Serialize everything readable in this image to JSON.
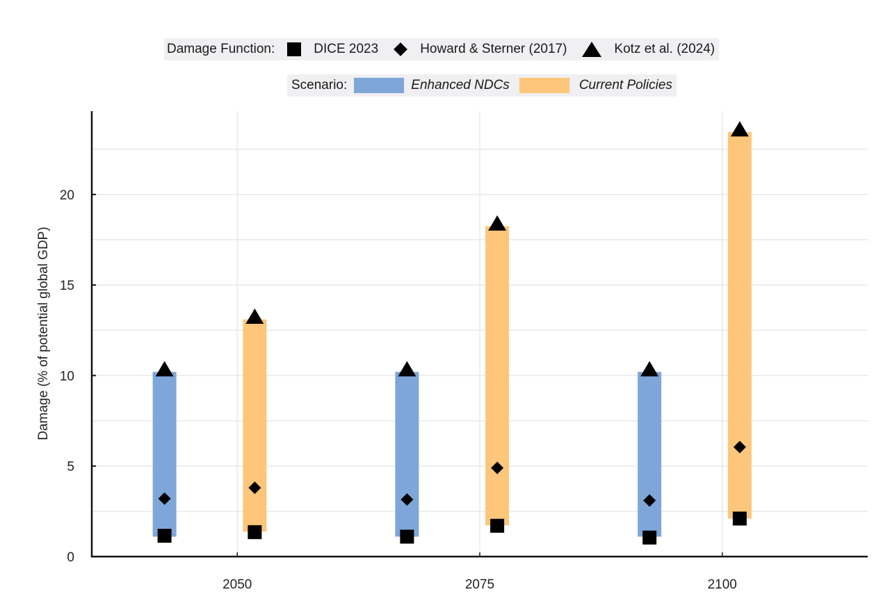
{
  "legends": {
    "damage_function": {
      "title": "Damage Function:",
      "items": [
        {
          "label": "DICE 2023",
          "marker": "square-icon"
        },
        {
          "label": "Howard & Sterner (2017)",
          "marker": "diamond-icon"
        },
        {
          "label": "Kotz et al. (2024)",
          "marker": "triangle-icon"
        }
      ]
    },
    "scenario": {
      "title": "Scenario:",
      "items": [
        {
          "label": "Enhanced NDCs",
          "color": "#7ea6d8"
        },
        {
          "label": "Current Policies",
          "color": "#fdc67a"
        }
      ]
    }
  },
  "chart_data": {
    "type": "range-bar-scatter",
    "title": "",
    "xlabel": "",
    "ylabel": "Damage (% of potential global GDP)",
    "xlim": [
      2035,
      2115
    ],
    "ylim": [
      0,
      24.6
    ],
    "x_ticks": [
      2050,
      2075,
      2100
    ],
    "x_tick_labels": [
      "2050",
      "2075",
      "2100"
    ],
    "y_ticks": [
      0,
      5,
      10,
      15,
      20
    ],
    "y_tick_labels": [
      "0",
      "5",
      "10",
      "15",
      "20"
    ],
    "grid": true,
    "minor_grid_step": 2.5,
    "legend_placement": "top-center",
    "categories": [
      "2050",
      "2075",
      "2100"
    ],
    "scenarios": [
      {
        "name": "Enhanced NDCs",
        "color": "#7ea6d8",
        "offset_years": -7.5,
        "ranges": [
          [
            1.1,
            10.2
          ],
          [
            1.1,
            10.2
          ],
          [
            1.1,
            10.2
          ]
        ],
        "DICE 2023": [
          1.15,
          1.1,
          1.05
        ],
        "Howard & Sterner (2017)": [
          3.2,
          3.15,
          3.1
        ],
        "Kotz et al. (2024)": [
          10.3,
          10.3,
          10.3
        ]
      },
      {
        "name": "Current Policies",
        "color": "#fdc67a",
        "offset_years": 1.8,
        "ranges": [
          [
            1.38,
            13.1
          ],
          [
            1.72,
            18.25
          ],
          [
            2.1,
            23.45
          ]
        ],
        "DICE 2023": [
          1.35,
          1.7,
          2.1
        ],
        "Howard & Sterner (2017)": [
          3.8,
          4.9,
          6.05
        ],
        "Kotz et al. (2024)": [
          13.2,
          18.35,
          23.55
        ]
      }
    ]
  }
}
